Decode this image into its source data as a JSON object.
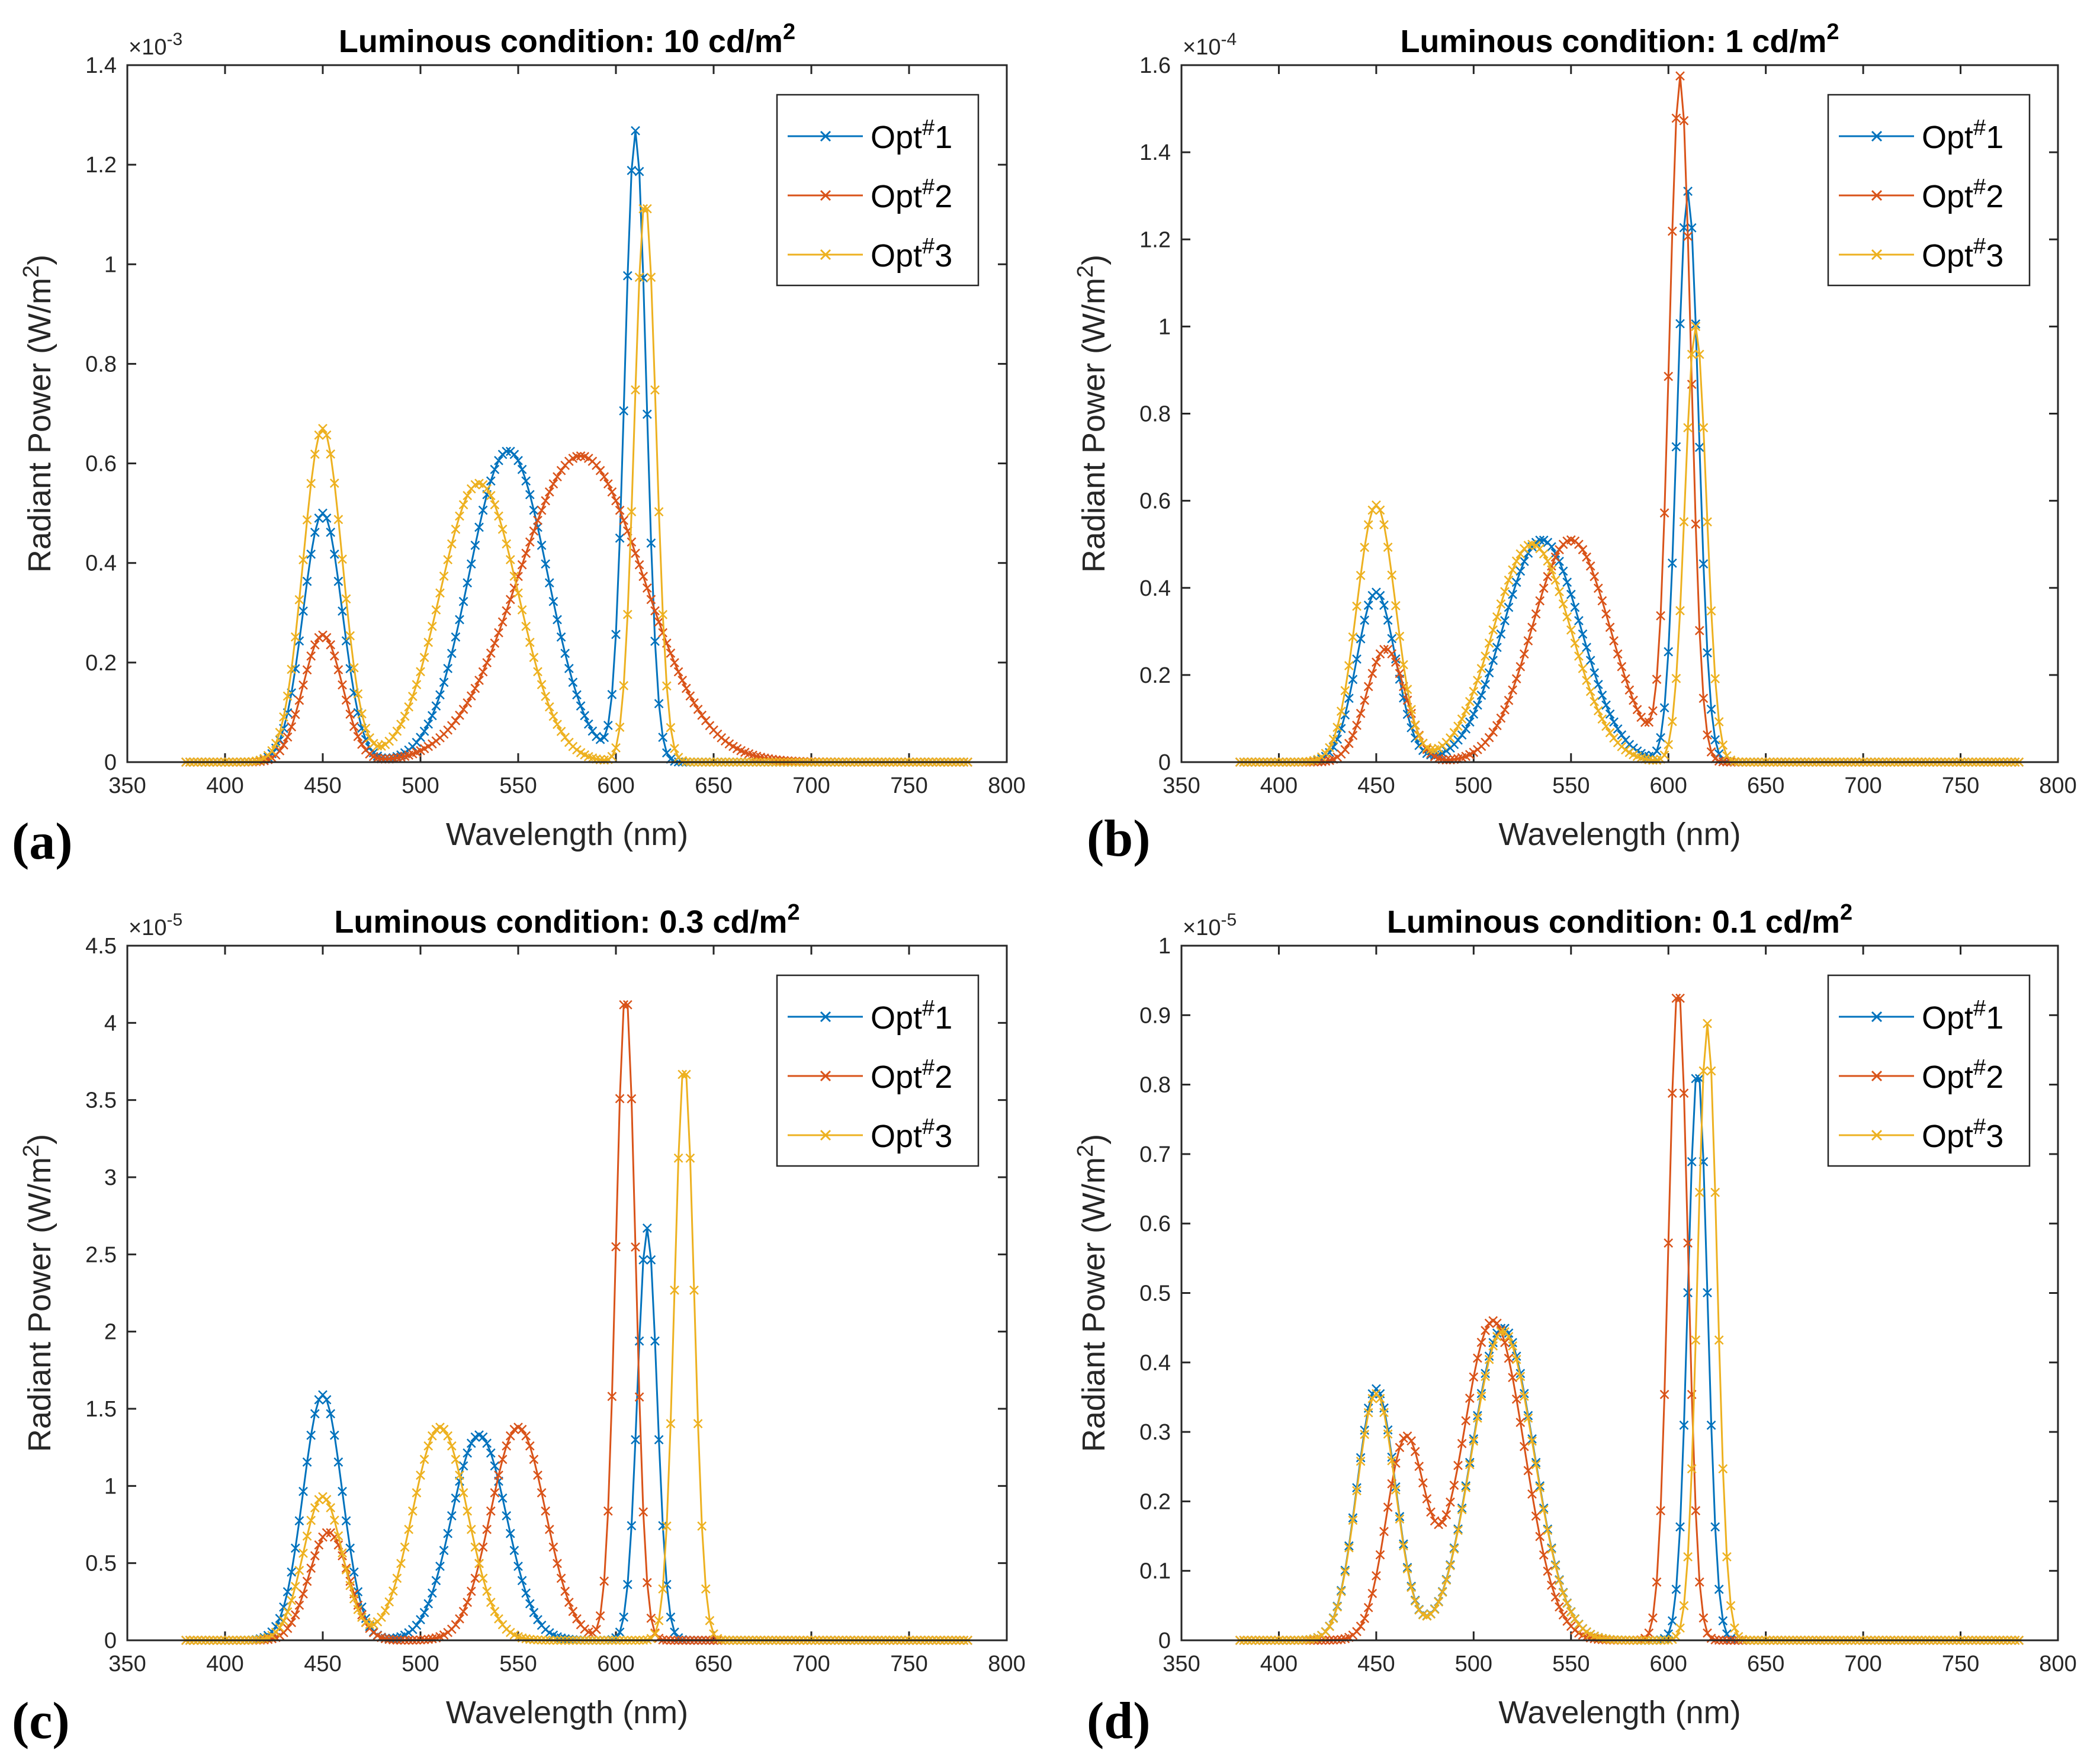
{
  "series_colors": [
    "#0072BD",
    "#D95319",
    "#EDB120"
  ],
  "legend_base": "Opt",
  "legend_sup": "#",
  "chart_data": [
    {
      "type": "line",
      "panel_label": "(a)",
      "title": "Luminous condition: 10 cd/m",
      "title_sup": "2",
      "xlabel": "Wavelength (nm)",
      "ylabel": "Radiant Power (W/m",
      "ylabel_sup": "2",
      "ylabel_tail": ")",
      "exponent_text": "×10",
      "exponent_sup": "-3",
      "xlim": [
        350,
        800
      ],
      "ylim": [
        0,
        1.4
      ],
      "xticks": [
        350,
        400,
        450,
        500,
        550,
        600,
        650,
        700,
        750,
        800
      ],
      "yticks": [
        0,
        0.2,
        0.4,
        0.6,
        0.8,
        1,
        1.2,
        1.4
      ],
      "x_range": [
        380,
        780,
        2
      ],
      "legend": [
        "1",
        "2",
        "3"
      ],
      "series": [
        {
          "name": "Opt#1",
          "peaks": [
            [
              450,
              0.5,
              10
            ],
            [
              545,
              0.625,
              20
            ],
            [
              610,
              1.265,
              5.5
            ]
          ]
        },
        {
          "name": "Opt#2",
          "peaks": [
            [
              450,
              0.255,
              10
            ],
            [
              582,
              0.615,
              32
            ]
          ]
        },
        {
          "name": "Opt#3",
          "peaks": [
            [
              450,
              0.67,
              10
            ],
            [
              530,
              0.56,
              20
            ],
            [
              615,
              1.13,
              5.5
            ]
          ]
        }
      ]
    },
    {
      "type": "line",
      "panel_label": "(b)",
      "title": "Luminous condition: 1 cd/m",
      "title_sup": "2",
      "xlabel": "Wavelength (nm)",
      "ylabel": "Radiant Power (W/m",
      "ylabel_sup": "2",
      "ylabel_tail": ")",
      "exponent_text": "×10",
      "exponent_sup": "-4",
      "xlim": [
        350,
        800
      ],
      "ylim": [
        0,
        1.6
      ],
      "xticks": [
        350,
        400,
        450,
        500,
        550,
        600,
        650,
        700,
        750,
        800
      ],
      "yticks": [
        0,
        0.2,
        0.4,
        0.6,
        0.8,
        1,
        1.2,
        1.4,
        1.6
      ],
      "x_range": [
        380,
        780,
        2
      ],
      "legend": [
        "1",
        "2",
        "3"
      ],
      "series": [
        {
          "name": "Opt#1",
          "peaks": [
            [
              450,
              0.39,
              10
            ],
            [
              535,
              0.51,
              20
            ],
            [
              610,
              1.31,
              5.5
            ]
          ]
        },
        {
          "name": "Opt#2",
          "peaks": [
            [
              455,
              0.26,
              10
            ],
            [
              550,
              0.51,
              20
            ],
            [
              606,
              1.565,
              5.5
            ]
          ]
        },
        {
          "name": "Opt#3",
          "peaks": [
            [
              450,
              0.59,
              10
            ],
            [
              530,
              0.5,
              20
            ],
            [
              614,
              1.0,
              5.5
            ]
          ]
        }
      ]
    },
    {
      "type": "line",
      "panel_label": "(c)",
      "title": "Luminous condition: 0.3 cd/m",
      "title_sup": "2",
      "xlabel": "Wavelength (nm)",
      "ylabel": "Radiant Power (W/m",
      "ylabel_sup": "2",
      "ylabel_tail": ")",
      "exponent_text": "×10",
      "exponent_sup": "-5",
      "xlim": [
        350,
        800
      ],
      "ylim": [
        0,
        4.5
      ],
      "xticks": [
        350,
        400,
        450,
        500,
        550,
        600,
        650,
        700,
        750,
        800
      ],
      "yticks": [
        0,
        0.5,
        1,
        1.5,
        2,
        2.5,
        3,
        3.5,
        4,
        4.5
      ],
      "x_range": [
        380,
        780,
        2
      ],
      "legend": [
        "1",
        "2",
        "3"
      ],
      "series": [
        {
          "name": "Opt#1",
          "peaks": [
            [
              450,
              1.59,
              10
            ],
            [
              530,
              1.33,
              14
            ],
            [
              616,
              2.67,
              5
            ]
          ]
        },
        {
          "name": "Opt#2",
          "peaks": [
            [
              453,
              0.7,
              10
            ],
            [
              550,
              1.38,
              14
            ],
            [
              605,
              4.2,
              5
            ]
          ]
        },
        {
          "name": "Opt#3",
          "peaks": [
            [
              450,
              0.93,
              10
            ],
            [
              510,
              1.38,
              14
            ],
            [
              635,
              3.74,
              5
            ]
          ]
        }
      ]
    },
    {
      "type": "line",
      "panel_label": "(d)",
      "title": "Luminous condition: 0.1 cd/m",
      "title_sup": "2",
      "xlabel": "Wavelength (nm)",
      "ylabel": "Radiant Power (W/m",
      "ylabel_sup": "2",
      "ylabel_tail": ")",
      "exponent_text": "×10",
      "exponent_sup": "-5",
      "xlim": [
        350,
        800
      ],
      "ylim": [
        0,
        1
      ],
      "xticks": [
        350,
        400,
        450,
        500,
        550,
        600,
        650,
        700,
        750,
        800
      ],
      "yticks": [
        0,
        0.1,
        0.2,
        0.3,
        0.4,
        0.5,
        0.6,
        0.7,
        0.8,
        0.9,
        1
      ],
      "x_range": [
        380,
        780,
        2
      ],
      "legend": [
        "1",
        "2",
        "3"
      ],
      "series": [
        {
          "name": "Opt#1",
          "peaks": [
            [
              450,
              0.362,
              10
            ],
            [
              515,
              0.45,
              16
            ],
            [
              615,
              0.825,
              5
            ]
          ]
        },
        {
          "name": "Opt#2",
          "peaks": [
            [
              465,
              0.285,
              10
            ],
            [
              510,
              0.46,
              16
            ],
            [
              605,
              0.943,
              5
            ]
          ]
        },
        {
          "name": "Opt#3",
          "peaks": [
            [
              450,
              0.355,
              10
            ],
            [
              515,
              0.445,
              16
            ],
            [
              620,
              0.888,
              5
            ]
          ]
        }
      ]
    }
  ]
}
